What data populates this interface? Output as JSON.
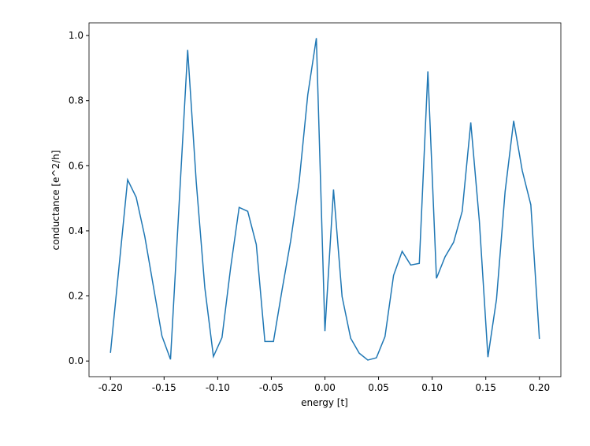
{
  "chart_data": {
    "type": "line",
    "xlabel": "energy [t]",
    "ylabel": "conductance [e^2/h]",
    "x": [
      -0.2,
      -0.192,
      -0.184,
      -0.176,
      -0.168,
      -0.16,
      -0.152,
      -0.144,
      -0.136,
      -0.128,
      -0.12,
      -0.112,
      -0.104,
      -0.096,
      -0.088,
      -0.08,
      -0.072,
      -0.064,
      -0.056,
      -0.048,
      -0.04,
      -0.032,
      -0.024,
      -0.016,
      -0.008,
      0.0,
      0.008,
      0.016,
      0.024,
      0.032,
      0.04,
      0.048,
      0.056,
      0.064,
      0.072,
      0.08,
      0.088,
      0.096,
      0.104,
      0.112,
      0.12,
      0.128,
      0.136,
      0.144,
      0.152,
      0.16,
      0.168,
      0.176,
      0.184,
      0.192,
      0.2
    ],
    "series": [
      {
        "color": "#1f77b4",
        "values": [
          0.025,
          0.29,
          0.557,
          0.503,
          0.383,
          0.23,
          0.077,
          0.005,
          0.48,
          0.956,
          0.55,
          0.225,
          0.014,
          0.072,
          0.285,
          0.472,
          0.46,
          0.358,
          0.06,
          0.06,
          0.218,
          0.368,
          0.552,
          0.818,
          0.992,
          0.092,
          0.527,
          0.198,
          0.07,
          0.024,
          0.003,
          0.01,
          0.075,
          0.263,
          0.337,
          0.295,
          0.3,
          0.89,
          0.254,
          0.32,
          0.365,
          0.46,
          0.733,
          0.43,
          0.012,
          0.19,
          0.52,
          0.738,
          0.585,
          0.48,
          0.068
        ]
      }
    ],
    "xlim": [
      -0.22,
      0.22
    ],
    "ylim": [
      -0.048,
      1.039
    ],
    "xticks": [
      {
        "value": -0.2,
        "label": "-0.20"
      },
      -0.15,
      {
        "value": -0.1,
        "label": "-0.10"
      },
      -0.05,
      {
        "value": 0,
        "label": "0.00"
      },
      0.05,
      {
        "value": 0.1,
        "label": "0.10"
      },
      0.15,
      {
        "value": 0.2,
        "label": "0.20"
      }
    ],
    "yticks": [
      {
        "value": 0,
        "label": "0.0"
      },
      0.2,
      0.4,
      0.6,
      0.8,
      {
        "value": 1,
        "label": "1.0"
      }
    ]
  }
}
